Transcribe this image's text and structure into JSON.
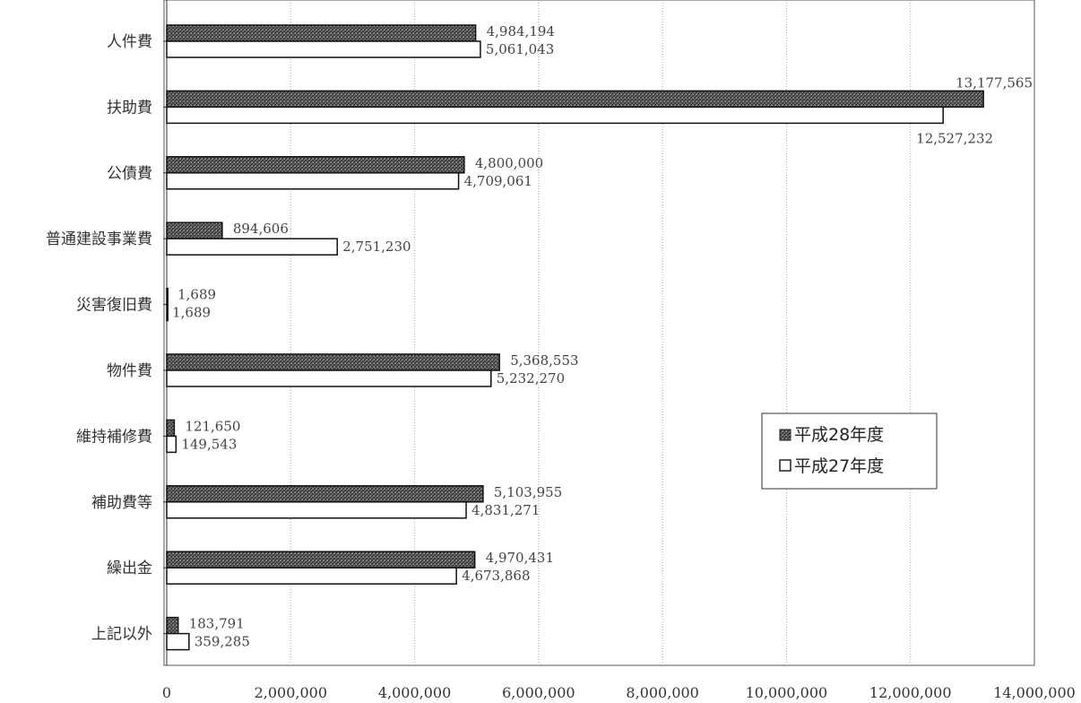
{
  "chart_data": {
    "type": "bar",
    "orientation": "horizontal",
    "categories": [
      "人件費",
      "扶助費",
      "公債費",
      "普通建設事業費",
      "災害復旧費",
      "物件費",
      "維持補修費",
      "補助費等",
      "繰出金",
      "上記以外"
    ],
    "series": [
      {
        "name": "平成28年度",
        "fill": "dark-hatched",
        "values": [
          4984194,
          13177565,
          4800000,
          894606,
          1689,
          5368553,
          121650,
          5103955,
          4970431,
          183791
        ],
        "labels": [
          "4,984,194",
          "13,177,565",
          "4,800,000",
          "894,606",
          "1,689",
          "5,368,553",
          "121,650",
          "5,103,955",
          "4,970,431",
          "183,791"
        ]
      },
      {
        "name": "平成27年度",
        "fill": "white",
        "values": [
          5061043,
          12527232,
          4709061,
          2751230,
          1689,
          5232270,
          149543,
          4831271,
          4673868,
          359285
        ],
        "labels": [
          "5,061,043",
          "12,527,232",
          "4,709,061",
          "2,751,230",
          "1,689",
          "5,232,270",
          "149,543",
          "4,831,271",
          "4,673,868",
          "359,285"
        ]
      }
    ],
    "xlim": [
      0,
      14000000
    ],
    "xticks": [
      0,
      2000000,
      4000000,
      6000000,
      8000000,
      10000000,
      12000000,
      14000000
    ],
    "xtick_labels": [
      "0",
      "2,000,000",
      "4,000,000",
      "6,000,000",
      "8,000,000",
      "10,000,000",
      "12,000,000",
      "14,000,000"
    ],
    "grid": "vertical dotted",
    "legend": {
      "position": "right-middle",
      "entries": [
        "平成28年度",
        "平成27年度"
      ]
    },
    "title": "",
    "xlabel": "",
    "ylabel": ""
  }
}
